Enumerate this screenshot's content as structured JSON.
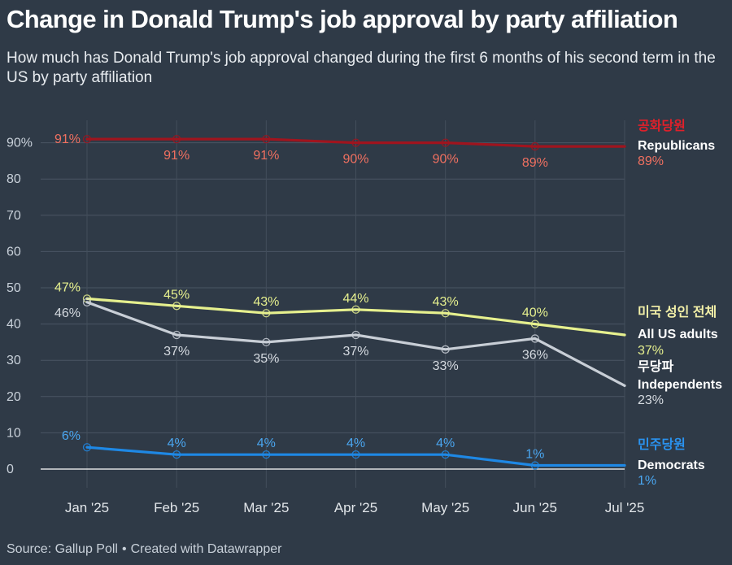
{
  "title": "Change in Donald Trump's job approval by party affiliation",
  "subtitle": "How much has Donald Trump's job approval changed during the first 6 months of his second term in the US by party affiliation",
  "footer": {
    "source": "Source: Gallup Poll",
    "credit": "Created with Datawrapper"
  },
  "chart_data": {
    "type": "line",
    "title": "Change in Donald Trump's job approval by party affiliation",
    "x": [
      "Jan '25",
      "Feb '25",
      "Mar '25",
      "Apr '25",
      "May '25",
      "Jun '25",
      "Jul '25"
    ],
    "ylim": [
      0,
      95
    ],
    "yticks": [
      0,
      10,
      20,
      30,
      40,
      50,
      60,
      70,
      80,
      90
    ],
    "ytick_labels": [
      "0",
      "10",
      "20",
      "30",
      "40",
      "50",
      "60",
      "70",
      "80",
      "90%"
    ],
    "grid": true,
    "series": [
      {
        "key": "rep",
        "name": "Republicans",
        "name_ko": "공화당원",
        "color": "#a0141e",
        "label_color": "#f07060",
        "name_ko_color": "#e0202a",
        "values": [
          91,
          91,
          91,
          90,
          90,
          89,
          89
        ],
        "labels": [
          "91%",
          "91%",
          "91%",
          "90%",
          "90%",
          "89%",
          "89%"
        ]
      },
      {
        "key": "all",
        "name": "All US adults",
        "name_ko": "미국 성인 전체",
        "color": "#e6f08e",
        "label_color": "#e6f08e",
        "name_ko_color": "#f3f0a8",
        "values": [
          47,
          45,
          43,
          44,
          43,
          40,
          37
        ],
        "labels": [
          "47%",
          "45%",
          "43%",
          "44%",
          "43%",
          "40%",
          "37%"
        ]
      },
      {
        "key": "ind",
        "name": "Independents",
        "name_ko": "무당파",
        "color": "#c8ced6",
        "label_color": "#d6dbe1",
        "name_ko_color": "#ffffff",
        "values": [
          46,
          37,
          35,
          37,
          33,
          36,
          23
        ],
        "labels": [
          "46%",
          "37%",
          "35%",
          "37%",
          "33%",
          "36%",
          "23%"
        ]
      },
      {
        "key": "dem",
        "name": "Democrats",
        "name_ko": "민주당원",
        "color": "#1e88e5",
        "label_color": "#4aa6f0",
        "name_ko_color": "#2a92ee",
        "values": [
          6,
          4,
          4,
          4,
          4,
          1,
          1
        ],
        "labels": [
          "6%",
          "4%",
          "4%",
          "4%",
          "4%",
          "1%",
          "1%"
        ]
      }
    ]
  }
}
